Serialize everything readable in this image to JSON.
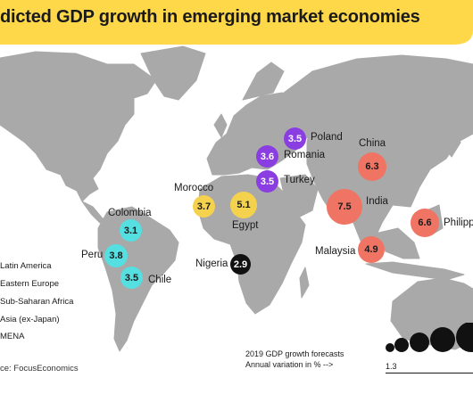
{
  "title": "dicted GDP growth in emerging market economies",
  "colors": {
    "latin_america": "#55dfe0",
    "eastern_europe": "#8a3de0",
    "sub_saharan_africa": "#111111",
    "asia": "#f07463",
    "mena": "#f5d24d",
    "land": "#a9a9a9",
    "title_band": "#ffd84a"
  },
  "countries": [
    {
      "name": "Poland",
      "value": "3.5",
      "region": "eastern_europe"
    },
    {
      "name": "Romania",
      "value": "3.6",
      "region": "eastern_europe"
    },
    {
      "name": "Turkey",
      "value": "3.5",
      "region": "eastern_europe"
    },
    {
      "name": "China",
      "value": "6.3",
      "region": "asia"
    },
    {
      "name": "India",
      "value": "7.5",
      "region": "asia"
    },
    {
      "name": "Philipp",
      "value": "6.6",
      "region": "asia"
    },
    {
      "name": "Malaysia",
      "value": "4.9",
      "region": "asia"
    },
    {
      "name": "Morocco",
      "value": "3.7",
      "region": "mena"
    },
    {
      "name": "Egypt",
      "value": "5.1",
      "region": "mena"
    },
    {
      "name": "Colombia",
      "value": "3.1",
      "region": "latin_america"
    },
    {
      "name": "Peru",
      "value": "3.8",
      "region": "latin_america"
    },
    {
      "name": "Chile",
      "value": "3.5",
      "region": "latin_america"
    },
    {
      "name": "Nigeria",
      "value": "2.9",
      "region": "sub_saharan_africa"
    }
  ],
  "legend": {
    "latin_america": "Latin America",
    "eastern_europe": "Eastern Europe",
    "sub_saharan_africa": "Sub-Saharan Africa",
    "asia": "Asia (ex-Japan)",
    "mena": "MENA"
  },
  "size_legend": {
    "line1": "2019 GDP growth forecasts",
    "line2": "Annual variation in % -->",
    "min": "1.3"
  },
  "source": "ce: FocusEconomics"
}
